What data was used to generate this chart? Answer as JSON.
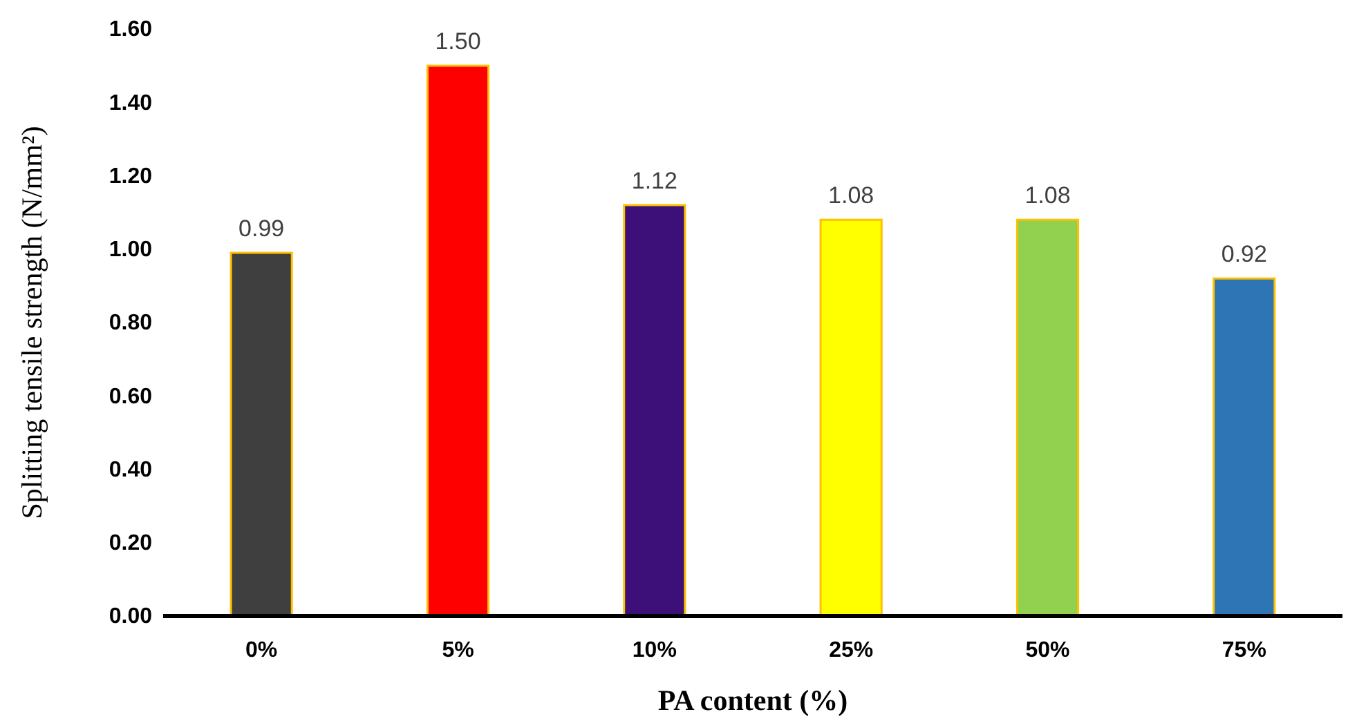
{
  "chart_data": {
    "type": "bar",
    "xlabel": "PA content (%)",
    "ylabel": "Splitting tensile strength (N/mm²)",
    "categories": [
      "0%",
      "5%",
      "10%",
      "25%",
      "50%",
      "75%"
    ],
    "values": [
      0.99,
      1.5,
      1.12,
      1.08,
      1.08,
      0.92
    ],
    "value_labels": [
      "0.99",
      "1.50",
      "1.12",
      "1.08",
      "1.08",
      "0.92"
    ],
    "colors": [
      "#3f3f3f",
      "#ff0000",
      "#3d0f78",
      "#ffff00",
      "#92d050",
      "#2e75b6"
    ],
    "ylim": [
      0,
      1.6
    ],
    "yticks": [
      {
        "value": 0,
        "label": "0.00"
      },
      {
        "value": 0.2,
        "label": "0.20"
      },
      {
        "value": 0.4,
        "label": "0.40"
      },
      {
        "value": 0.6,
        "label": "0.60"
      },
      {
        "value": 0.8,
        "label": "0.80"
      },
      {
        "value": 1.0,
        "label": "1.00"
      },
      {
        "value": 1.2,
        "label": "1.20"
      },
      {
        "value": 1.4,
        "label": "1.40"
      },
      {
        "value": 1.6,
        "label": "1.60"
      }
    ],
    "grid": false
  }
}
